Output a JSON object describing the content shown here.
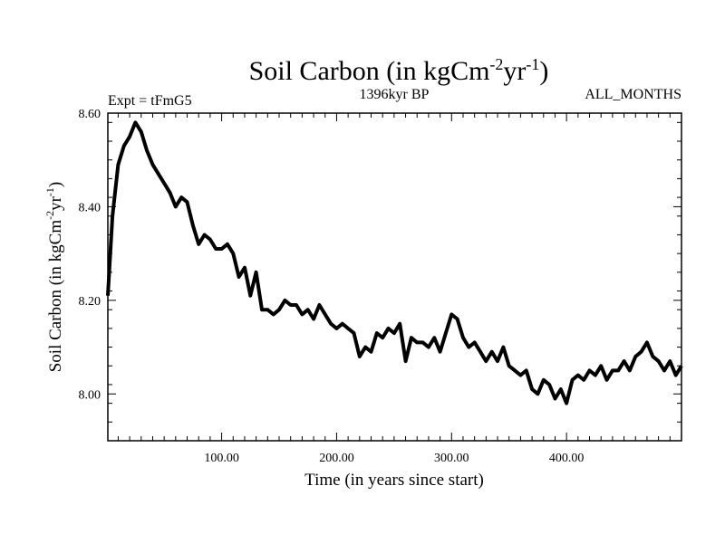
{
  "chart_data": {
    "type": "line",
    "title": {
      "base": "Soil Carbon (in kgCm",
      "sup1": "-2",
      "mid": "yr",
      "sup2": "-1",
      "end": ")"
    },
    "subtitle_left": "Expt = tFmG5",
    "subtitle_center": "1396kyr BP",
    "subtitle_right": "ALL_MONTHS",
    "xlabel": "Time (in years since start)",
    "ylabel": {
      "base": "Soil Carbon (in kgCm",
      "sup1": "-2",
      "mid": "yr",
      "sup2": "-1",
      "end": ")"
    },
    "xlim": [
      1,
      500
    ],
    "ylim": [
      7.9,
      8.6
    ],
    "x_ticks": [
      100,
      200,
      300,
      400
    ],
    "x_tick_labels": [
      "100.00",
      "200.00",
      "300.00",
      "400.00"
    ],
    "y_ticks": [
      8.0,
      8.2,
      8.4,
      8.6
    ],
    "y_tick_labels": [
      "8.00",
      "8.20",
      "8.40",
      "8.60"
    ],
    "grid": false,
    "series": [
      {
        "name": "Soil Carbon",
        "color": "#000000",
        "x": [
          1,
          5,
          10,
          15,
          20,
          25,
          30,
          35,
          40,
          45,
          50,
          55,
          60,
          65,
          70,
          75,
          80,
          85,
          90,
          95,
          100,
          105,
          110,
          115,
          120,
          125,
          130,
          135,
          140,
          145,
          150,
          155,
          160,
          165,
          170,
          175,
          180,
          185,
          190,
          195,
          200,
          205,
          210,
          215,
          220,
          225,
          230,
          235,
          240,
          245,
          250,
          255,
          260,
          265,
          270,
          275,
          280,
          285,
          290,
          295,
          300,
          305,
          310,
          315,
          320,
          325,
          330,
          335,
          340,
          345,
          350,
          355,
          360,
          365,
          370,
          375,
          380,
          385,
          390,
          395,
          400,
          405,
          410,
          415,
          420,
          425,
          430,
          435,
          440,
          445,
          450,
          455,
          460,
          465,
          470,
          475,
          480,
          485,
          490,
          495,
          500
        ],
        "y": [
          8.21,
          8.38,
          8.49,
          8.53,
          8.55,
          8.58,
          8.56,
          8.52,
          8.49,
          8.47,
          8.45,
          8.43,
          8.4,
          8.42,
          8.41,
          8.36,
          8.32,
          8.34,
          8.33,
          8.31,
          8.31,
          8.32,
          8.3,
          8.25,
          8.27,
          8.21,
          8.26,
          8.18,
          8.18,
          8.17,
          8.18,
          8.2,
          8.19,
          8.19,
          8.17,
          8.18,
          8.16,
          8.19,
          8.17,
          8.15,
          8.14,
          8.15,
          8.14,
          8.13,
          8.08,
          8.1,
          8.09,
          8.13,
          8.12,
          8.14,
          8.13,
          8.15,
          8.07,
          8.12,
          8.11,
          8.11,
          8.1,
          8.12,
          8.09,
          8.13,
          8.17,
          8.16,
          8.12,
          8.1,
          8.11,
          8.09,
          8.07,
          8.09,
          8.07,
          8.1,
          8.06,
          8.05,
          8.04,
          8.05,
          8.01,
          8.0,
          8.03,
          8.02,
          7.99,
          8.01,
          7.98,
          8.03,
          8.04,
          8.03,
          8.05,
          8.04,
          8.06,
          8.03,
          8.05,
          8.05,
          8.07,
          8.05,
          8.08,
          8.09,
          8.11,
          8.08,
          8.07,
          8.05,
          8.07,
          8.04,
          8.06
        ]
      }
    ]
  }
}
